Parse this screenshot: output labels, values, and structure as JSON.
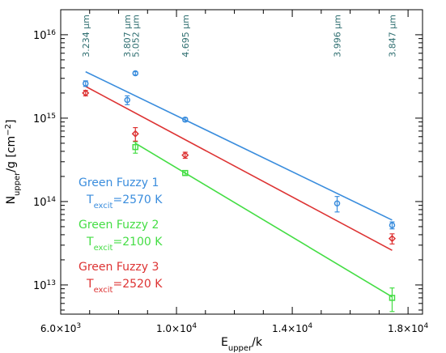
{
  "chart_data": {
    "type": "scatter",
    "title": "",
    "xlabel": "E",
    "xlabel_sub": "upper",
    "xlabel_suffix": "/k",
    "ylabel": "N",
    "ylabel_sub": "upper",
    "ylabel_suffix": "/g [cm",
    "ylabel_sup": "−2",
    "ylabel_close": "]",
    "xscale": "linear",
    "yscale": "log",
    "xlim": [
      6000,
      18500
    ],
    "ylim_exp": [
      12.65,
      16.3
    ],
    "grid": false,
    "x_ticks": [
      {
        "value": 6000,
        "mantissa": "6.0×10",
        "exp": "3"
      },
      {
        "value": 10000,
        "mantissa": "1.0×10",
        "exp": "4"
      },
      {
        "value": 14000,
        "mantissa": "1.4×10",
        "exp": "4"
      },
      {
        "value": 18000,
        "mantissa": "1.8×10",
        "exp": "4"
      }
    ],
    "y_ticks": [
      {
        "value": 13,
        "base": "10",
        "exp": "13"
      },
      {
        "value": 14,
        "base": "10",
        "exp": "14"
      },
      {
        "value": 15,
        "base": "10",
        "exp": "15"
      },
      {
        "value": 16,
        "base": "10",
        "exp": "16"
      }
    ],
    "wavelength_labels": [
      {
        "x": 6860,
        "text": "3.234 μm"
      },
      {
        "x": 8300,
        "text": "3.807 μm"
      },
      {
        "x": 8580,
        "text": "5.052 μm"
      },
      {
        "x": 10300,
        "text": "4.695 μm"
      },
      {
        "x": 15550,
        "text": "3.996 μm"
      },
      {
        "x": 17450,
        "text": "3.847 μm"
      }
    ],
    "series": [
      {
        "name": "Green Fuzzy 1",
        "texcit_label": "T",
        "texcit_sub": "excit",
        "texcit_value": "=2570  K",
        "color": "#3a8ddd",
        "marker": "circle",
        "points": [
          {
            "x": 6860,
            "y": 2600000000000000.0,
            "err": 200000000000000.0
          },
          {
            "x": 8300,
            "y": 1650000000000000.0,
            "err": 200000000000000.0
          },
          {
            "x": 8580,
            "y": 3450000000000000.0,
            "err": 150000000000000.0
          },
          {
            "x": 10300,
            "y": 960000000000000.0,
            "err": 50000000000000.0
          },
          {
            "x": 15550,
            "y": 95000000000000.0,
            "err": 20000000000000.0
          },
          {
            "x": 17450,
            "y": 52000000000000.0,
            "err": 5000000000000.0
          }
        ],
        "fit": [
          [
            6860,
            3600000000000000.0
          ],
          [
            17450,
            60000000000000.0
          ]
        ]
      },
      {
        "name": "Green Fuzzy 2",
        "texcit_label": "T",
        "texcit_sub": "excit",
        "texcit_value": "=2100  K",
        "color": "#44dd44",
        "marker": "square",
        "points": [
          {
            "x": 8580,
            "y": 450000000000000.0,
            "err": 70000000000000.0
          },
          {
            "x": 10300,
            "y": 220000000000000.0,
            "err": 15000000000000.0
          },
          {
            "x": 17450,
            "y": 7000000000000.0,
            "err": 2200000000000.0
          }
        ],
        "fit": [
          [
            8580,
            500000000000000.0
          ],
          [
            17450,
            7200000000000.0
          ]
        ]
      },
      {
        "name": "Green Fuzzy 3",
        "texcit_label": "T",
        "texcit_sub": "excit",
        "texcit_value": "=2520  K",
        "color": "#dd3333",
        "marker": "diamond",
        "points": [
          {
            "x": 6860,
            "y": 2000000000000000.0,
            "err": 150000000000000.0
          },
          {
            "x": 8580,
            "y": 650000000000000.0,
            "err": 120000000000000.0
          },
          {
            "x": 10300,
            "y": 360000000000000.0,
            "err": 30000000000000.0
          },
          {
            "x": 17450,
            "y": 36000000000000.0,
            "err": 5000000000000.0
          }
        ],
        "fit": [
          [
            6860,
            2400000000000000.0
          ],
          [
            17450,
            26000000000000.0
          ]
        ]
      }
    ]
  }
}
